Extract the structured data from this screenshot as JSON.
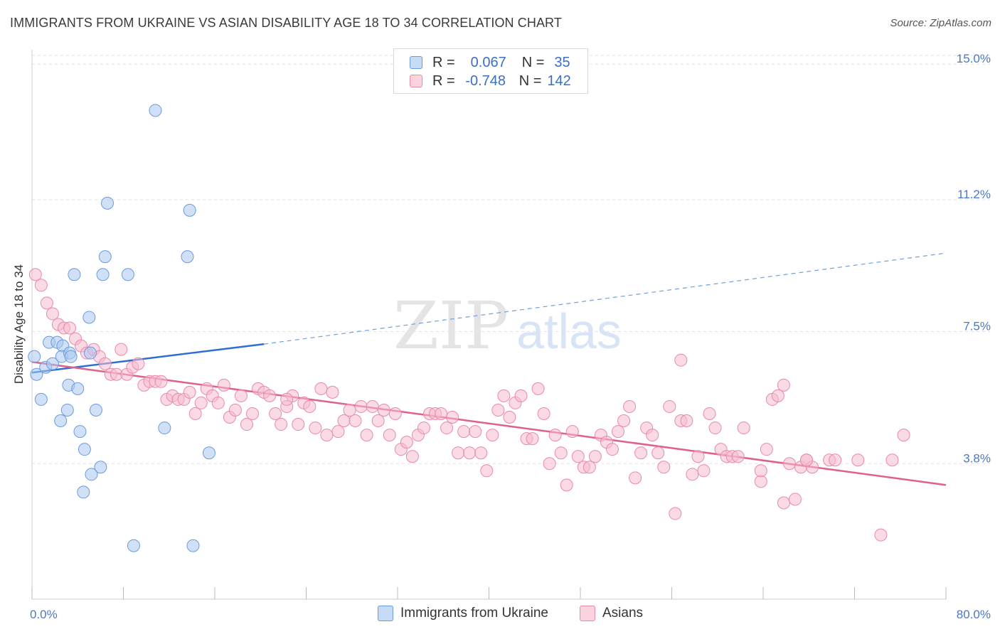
{
  "title": "IMMIGRANTS FROM UKRAINE VS ASIAN DISABILITY AGE 18 TO 34 CORRELATION CHART",
  "source": "Source: ZipAtlas.com",
  "watermark": {
    "zip": "ZIP",
    "atlas": "atlas"
  },
  "legend": {
    "r_label": "R =",
    "n_label": "N =",
    "rows": [
      {
        "r": "0.067",
        "n": "35",
        "color": "#a9c8f0",
        "border": "#6a9ae0"
      },
      {
        "r": "-0.748",
        "n": "142",
        "color": "#f6bccd",
        "border": "#e88aa8"
      }
    ]
  },
  "bottom_legend": [
    {
      "label": "Immigrants from Ukraine",
      "color": "#c5dbf6",
      "border": "#6a9ae0"
    },
    {
      "label": "Asians",
      "color": "#fad3df",
      "border": "#e88aa8"
    }
  ],
  "chart_data": {
    "type": "scatter",
    "title": "IMMIGRANTS FROM UKRAINE VS ASIAN DISABILITY AGE 18 TO 34 CORRELATION CHART",
    "xlabel": "",
    "ylabel": "Disability Age 18 to 34",
    "xlim": [
      0,
      80
    ],
    "ylim": [
      0,
      15.4
    ],
    "x_tick_labels": [
      "0.0%",
      "80.0%"
    ],
    "y_ticks": [
      3.8,
      7.5,
      11.2,
      15.0
    ],
    "y_tick_labels": [
      "3.8%",
      "7.5%",
      "11.2%",
      "15.0%"
    ],
    "grid": true,
    "series": [
      {
        "name": "Immigrants from Ukraine",
        "color": "#a9c8f0",
        "stroke": "#6a9ae0",
        "trend": {
          "x": [
            0,
            20.3
          ],
          "y": [
            6.35,
            7.15
          ],
          "dash_to": [
            80,
            9.7
          ],
          "color": "#2f6fd0"
        },
        "points": [
          [
            0.2,
            6.8
          ],
          [
            0.4,
            6.3
          ],
          [
            0.8,
            5.6
          ],
          [
            1.2,
            6.5
          ],
          [
            1.8,
            6.6
          ],
          [
            1.5,
            7.2
          ],
          [
            2.2,
            7.2
          ],
          [
            2.7,
            7.1
          ],
          [
            2.6,
            6.8
          ],
          [
            3.3,
            6.9
          ],
          [
            3.4,
            6.8
          ],
          [
            3.1,
            5.3
          ],
          [
            2.5,
            5.0
          ],
          [
            3.2,
            6.0
          ],
          [
            4.0,
            5.9
          ],
          [
            4.2,
            4.7
          ],
          [
            4.6,
            4.2
          ],
          [
            3.7,
            9.1
          ],
          [
            5.0,
            7.9
          ],
          [
            5.1,
            6.9
          ],
          [
            5.2,
            3.5
          ],
          [
            5.6,
            5.3
          ],
          [
            6.0,
            3.7
          ],
          [
            6.2,
            9.1
          ],
          [
            6.4,
            9.6
          ],
          [
            6.6,
            11.1
          ],
          [
            8.4,
            9.1
          ],
          [
            10.8,
            13.7
          ],
          [
            11.6,
            4.8
          ],
          [
            13.6,
            9.6
          ],
          [
            13.8,
            10.9
          ],
          [
            15.5,
            4.1
          ],
          [
            4.5,
            3.0
          ],
          [
            8.9,
            1.5
          ],
          [
            14.1,
            1.5
          ]
        ]
      },
      {
        "name": "Asians",
        "color": "#f6bccd",
        "stroke": "#e88aa8",
        "trend": {
          "x": [
            0,
            80
          ],
          "y": [
            6.65,
            3.2
          ],
          "color": "#e0608c"
        },
        "points": [
          [
            0.3,
            9.1
          ],
          [
            0.8,
            8.8
          ],
          [
            1.3,
            8.3
          ],
          [
            1.8,
            8.0
          ],
          [
            2.3,
            7.7
          ],
          [
            2.8,
            7.6
          ],
          [
            3.3,
            7.6
          ],
          [
            3.8,
            7.3
          ],
          [
            4.3,
            7.1
          ],
          [
            4.8,
            6.9
          ],
          [
            5.4,
            7.0
          ],
          [
            5.9,
            6.8
          ],
          [
            6.4,
            6.6
          ],
          [
            6.9,
            6.3
          ],
          [
            7.4,
            6.3
          ],
          [
            7.8,
            7.0
          ],
          [
            8.3,
            6.3
          ],
          [
            8.8,
            6.5
          ],
          [
            9.3,
            6.6
          ],
          [
            9.8,
            6.0
          ],
          [
            10.3,
            6.1
          ],
          [
            10.8,
            6.1
          ],
          [
            11.3,
            6.1
          ],
          [
            11.8,
            5.6
          ],
          [
            12.3,
            5.7
          ],
          [
            12.8,
            5.6
          ],
          [
            13.3,
            5.6
          ],
          [
            13.8,
            5.8
          ],
          [
            14.3,
            5.2
          ],
          [
            14.8,
            5.5
          ],
          [
            15.3,
            5.9
          ],
          [
            15.8,
            5.7
          ],
          [
            16.3,
            5.5
          ],
          [
            16.8,
            6.0
          ],
          [
            17.3,
            5.1
          ],
          [
            17.8,
            5.3
          ],
          [
            18.3,
            5.7
          ],
          [
            18.8,
            4.9
          ],
          [
            19.3,
            5.2
          ],
          [
            19.8,
            5.9
          ],
          [
            20.3,
            5.8
          ],
          [
            20.8,
            5.7
          ],
          [
            21.3,
            5.2
          ],
          [
            21.8,
            4.9
          ],
          [
            22.3,
            5.4
          ],
          [
            22.8,
            5.7
          ],
          [
            23.3,
            4.9
          ],
          [
            23.8,
            5.5
          ],
          [
            24.3,
            5.4
          ],
          [
            24.8,
            4.8
          ],
          [
            25.3,
            5.9
          ],
          [
            25.8,
            4.6
          ],
          [
            26.3,
            5.8
          ],
          [
            26.8,
            4.7
          ],
          [
            27.3,
            5.0
          ],
          [
            27.8,
            5.3
          ],
          [
            28.3,
            5.0
          ],
          [
            28.8,
            5.4
          ],
          [
            29.3,
            4.6
          ],
          [
            29.8,
            5.4
          ],
          [
            30.3,
            5.0
          ],
          [
            30.8,
            5.3
          ],
          [
            31.3,
            4.6
          ],
          [
            31.8,
            5.2
          ],
          [
            32.3,
            4.2
          ],
          [
            32.8,
            4.4
          ],
          [
            33.3,
            4.0
          ],
          [
            33.8,
            4.6
          ],
          [
            34.3,
            4.8
          ],
          [
            34.8,
            5.2
          ],
          [
            35.3,
            5.2
          ],
          [
            35.8,
            5.2
          ],
          [
            36.3,
            4.8
          ],
          [
            36.8,
            5.1
          ],
          [
            37.3,
            4.1
          ],
          [
            37.8,
            4.7
          ],
          [
            38.3,
            4.1
          ],
          [
            38.8,
            4.7
          ],
          [
            39.3,
            4.1
          ],
          [
            39.8,
            3.6
          ],
          [
            40.3,
            4.6
          ],
          [
            40.8,
            5.3
          ],
          [
            41.3,
            5.7
          ],
          [
            41.8,
            5.1
          ],
          [
            42.3,
            5.5
          ],
          [
            42.8,
            5.7
          ],
          [
            43.3,
            4.5
          ],
          [
            43.8,
            4.5
          ],
          [
            44.3,
            5.9
          ],
          [
            44.8,
            5.2
          ],
          [
            45.3,
            3.8
          ],
          [
            45.8,
            4.6
          ],
          [
            46.3,
            4.1
          ],
          [
            46.8,
            3.2
          ],
          [
            47.3,
            4.7
          ],
          [
            47.8,
            4.0
          ],
          [
            48.3,
            3.7
          ],
          [
            48.8,
            3.7
          ],
          [
            49.3,
            4.0
          ],
          [
            49.8,
            4.6
          ],
          [
            50.3,
            4.4
          ],
          [
            50.8,
            4.2
          ],
          [
            51.3,
            4.7
          ],
          [
            51.8,
            5.0
          ],
          [
            52.3,
            5.4
          ],
          [
            52.8,
            3.4
          ],
          [
            53.3,
            4.1
          ],
          [
            53.8,
            4.8
          ],
          [
            54.3,
            4.6
          ],
          [
            54.8,
            4.1
          ],
          [
            55.3,
            3.7
          ],
          [
            55.8,
            5.4
          ],
          [
            56.3,
            2.4
          ],
          [
            56.8,
            5.0
          ],
          [
            57.3,
            5.0
          ],
          [
            57.8,
            3.5
          ],
          [
            58.3,
            4.0
          ],
          [
            58.8,
            3.6
          ],
          [
            59.3,
            5.2
          ],
          [
            59.8,
            4.8
          ],
          [
            60.3,
            4.2
          ],
          [
            60.8,
            4.0
          ],
          [
            61.3,
            4.0
          ],
          [
            61.8,
            4.0
          ],
          [
            62.3,
            4.8
          ],
          [
            63.8,
            3.3
          ],
          [
            64.3,
            4.2
          ],
          [
            64.8,
            5.6
          ],
          [
            65.3,
            5.7
          ],
          [
            65.8,
            2.7
          ],
          [
            66.3,
            3.8
          ],
          [
            66.8,
            2.8
          ],
          [
            67.3,
            3.7
          ],
          [
            67.8,
            3.9
          ],
          [
            68.3,
            3.7
          ],
          [
            69.8,
            3.9
          ],
          [
            70.3,
            3.9
          ],
          [
            72.3,
            3.9
          ],
          [
            74.3,
            1.8
          ],
          [
            76.3,
            4.6
          ],
          [
            75.3,
            3.9
          ],
          [
            56.8,
            6.7
          ],
          [
            63.8,
            3.6
          ],
          [
            67.8,
            3.9
          ],
          [
            65.8,
            6.0
          ],
          [
            22.3,
            5.6
          ]
        ]
      }
    ]
  }
}
